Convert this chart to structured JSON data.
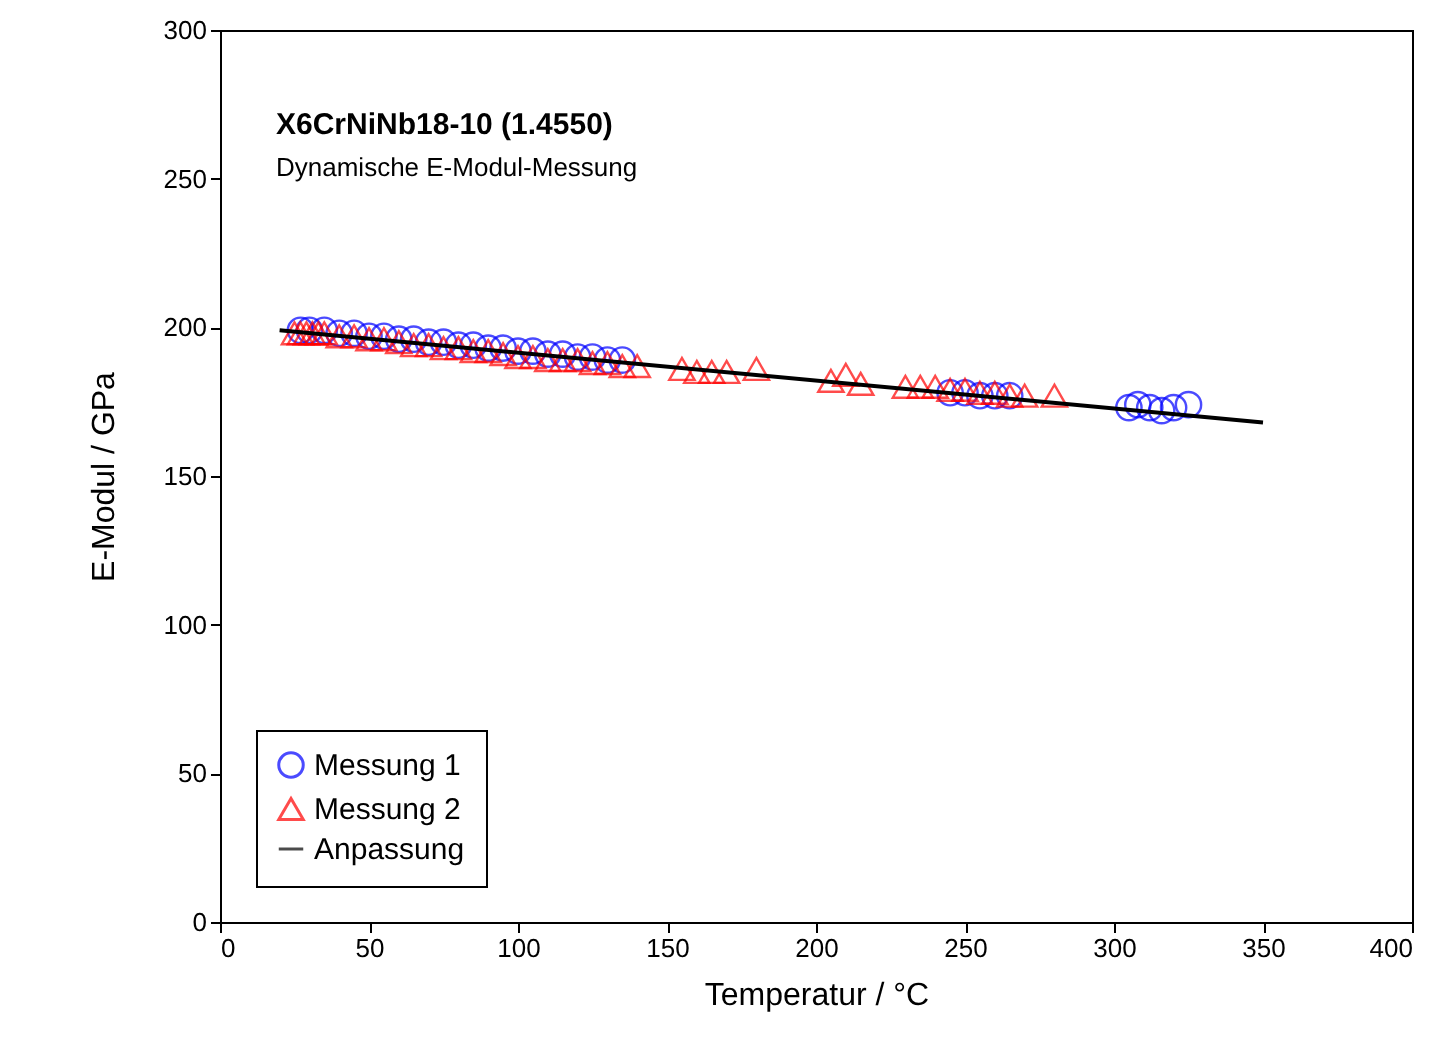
{
  "chart_data": {
    "type": "scatter",
    "title": "X6CrNiNb18-10 (1.4550)",
    "subtitle": "Dynamische E-Modul-Messung",
    "xlabel": "Temperatur / °C",
    "ylabel": "E-Modul / GPa",
    "xlim": [
      0,
      400
    ],
    "ylim": [
      0,
      300
    ],
    "xticks": [
      0,
      50,
      100,
      150,
      200,
      250,
      300,
      350,
      400
    ],
    "yticks": [
      0,
      50,
      100,
      150,
      200,
      250,
      300
    ],
    "grid": false,
    "legend": "bottom left",
    "series": [
      {
        "name": "Messung 1",
        "color": "#0000ff",
        "marker": "circle",
        "x": [
          27,
          30,
          35,
          40,
          45,
          50,
          55,
          60,
          65,
          70,
          75,
          80,
          85,
          90,
          95,
          100,
          105,
          110,
          115,
          120,
          125,
          130,
          135,
          245,
          250,
          255,
          260,
          265,
          305,
          308,
          312,
          316,
          320,
          325
        ],
        "values": [
          199,
          199,
          199,
          198,
          198,
          197,
          197,
          196,
          196,
          195,
          195,
          194,
          194,
          193,
          193,
          192,
          192,
          191,
          191,
          190,
          190,
          189,
          189,
          178,
          178,
          177,
          177,
          177,
          173,
          174,
          173,
          172,
          173,
          174
        ]
      },
      {
        "name": "Messung 2",
        "color": "#ff0000",
        "marker": "triangle",
        "x": [
          25,
          27,
          29,
          31,
          33,
          35,
          40,
          45,
          50,
          55,
          60,
          65,
          70,
          75,
          80,
          85,
          90,
          95,
          100,
          105,
          110,
          115,
          120,
          125,
          130,
          135,
          140,
          155,
          160,
          165,
          170,
          180,
          205,
          210,
          215,
          230,
          235,
          240,
          245,
          250,
          255,
          260,
          265,
          270,
          280
        ],
        "values": [
          198,
          198,
          198,
          198,
          198,
          198,
          197,
          197,
          196,
          196,
          195,
          194,
          194,
          193,
          193,
          192,
          192,
          191,
          190,
          190,
          189,
          189,
          189,
          188,
          188,
          187,
          187,
          186,
          185,
          185,
          185,
          186,
          182,
          184,
          181,
          180,
          180,
          180,
          179,
          179,
          178,
          178,
          177,
          177,
          177
        ]
      },
      {
        "name": "Anpassung",
        "color": "#000000",
        "type": "line",
        "x": [
          20,
          350
        ],
        "values": [
          199,
          168
        ]
      }
    ]
  }
}
